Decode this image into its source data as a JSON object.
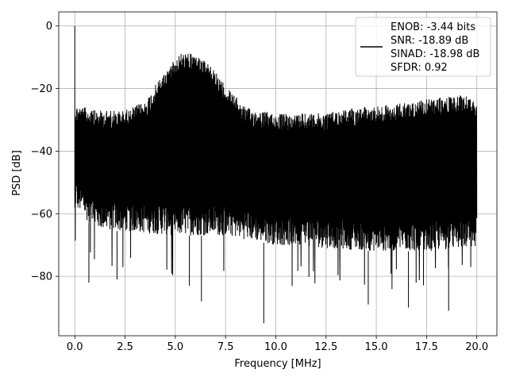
{
  "chart_data": {
    "type": "line",
    "title": "",
    "xlabel": "Frequency [MHz]",
    "ylabel": "PSD [dB]",
    "xlim": [
      -0.8,
      21.0
    ],
    "ylim": [
      -99,
      4.5
    ],
    "xticks": [
      0.0,
      2.5,
      5.0,
      7.5,
      10.0,
      12.5,
      15.0,
      17.5,
      20.0
    ],
    "xtick_labels": [
      "0.0",
      "2.5",
      "5.0",
      "7.5",
      "10.0",
      "12.5",
      "15.0",
      "17.5",
      "20.0"
    ],
    "yticks": [
      0,
      -20,
      -40,
      -60,
      -80
    ],
    "ytick_labels": [
      "0",
      "−20",
      "−40",
      "−60",
      "−80"
    ],
    "grid": true,
    "legend_position": "top-right",
    "legend_lines": [
      "ENOB: -3.44 bits",
      "SNR: -18.89 dB",
      "SINAD: -18.98 dB",
      "SFDR: 0.92"
    ],
    "series": [
      {
        "color": "#000000",
        "description_points": {
          "x_range": [
            0.0,
            20.0
          ],
          "fundamental_peak": {
            "x": 0.0,
            "y": 0.0
          },
          "upper_envelope": [
            {
              "x": 0.0,
              "y": -25
            },
            {
              "x": 1.0,
              "y": -27
            },
            {
              "x": 2.5,
              "y": -27
            },
            {
              "x": 3.5,
              "y": -24
            },
            {
              "x": 4.2,
              "y": -17
            },
            {
              "x": 4.8,
              "y": -12
            },
            {
              "x": 5.3,
              "y": -8.5
            },
            {
              "x": 6.0,
              "y": -9
            },
            {
              "x": 6.8,
              "y": -13
            },
            {
              "x": 7.5,
              "y": -19
            },
            {
              "x": 8.5,
              "y": -26
            },
            {
              "x": 10.0,
              "y": -28
            },
            {
              "x": 12.0,
              "y": -28
            },
            {
              "x": 14.0,
              "y": -26
            },
            {
              "x": 16.0,
              "y": -25
            },
            {
              "x": 18.0,
              "y": -23
            },
            {
              "x": 19.5,
              "y": -22
            },
            {
              "x": 20.0,
              "y": -24
            }
          ],
          "lower_envelope": [
            {
              "x": 0.0,
              "y": -58
            },
            {
              "x": 1.0,
              "y": -65
            },
            {
              "x": 3.0,
              "y": -66
            },
            {
              "x": 5.0,
              "y": -67
            },
            {
              "x": 7.5,
              "y": -67
            },
            {
              "x": 10.0,
              "y": -70
            },
            {
              "x": 12.5,
              "y": -71
            },
            {
              "x": 15.0,
              "y": -72
            },
            {
              "x": 17.5,
              "y": -72
            },
            {
              "x": 20.0,
              "y": -71
            }
          ],
          "deep_dips": [
            {
              "x": 0.7,
              "y": -82
            },
            {
              "x": 2.1,
              "y": -81
            },
            {
              "x": 5.7,
              "y": -83
            },
            {
              "x": 6.3,
              "y": -88
            },
            {
              "x": 9.4,
              "y": -95
            },
            {
              "x": 14.6,
              "y": -89
            },
            {
              "x": 16.6,
              "y": -90
            },
            {
              "x": 18.6,
              "y": -91
            }
          ]
        }
      }
    ]
  }
}
